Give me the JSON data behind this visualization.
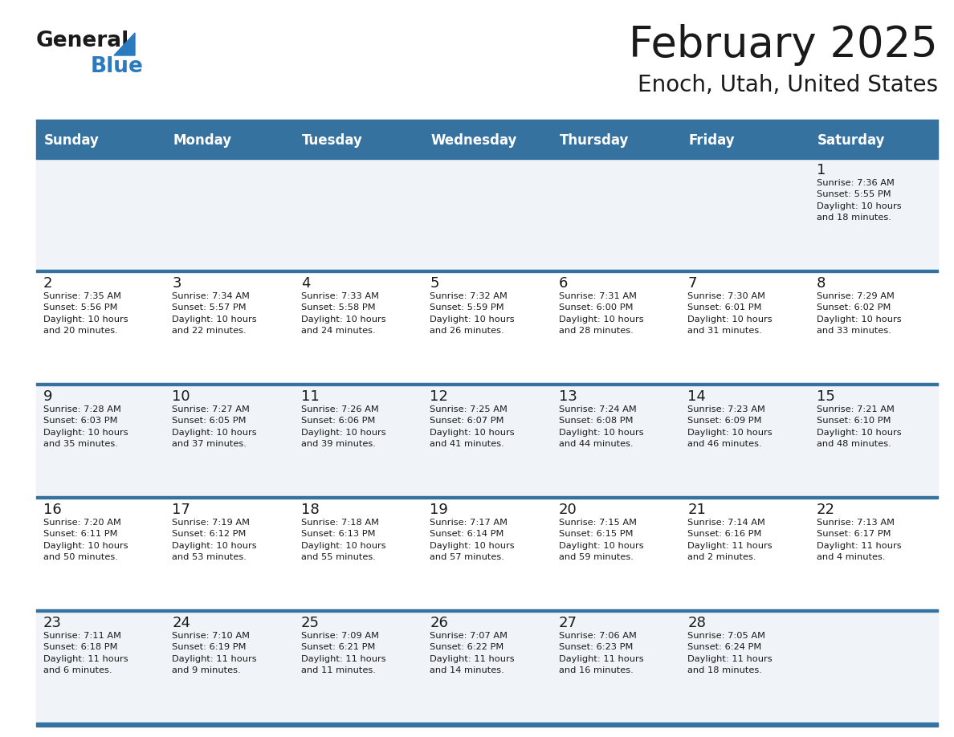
{
  "title": "February 2025",
  "subtitle": "Enoch, Utah, United States",
  "header_color": "#3572a0",
  "header_text_color": "#ffffff",
  "cell_bg_even": "#f0f4f8",
  "cell_bg_odd": "#ffffff",
  "border_color": "#3572a0",
  "separator_color": "#3572a0",
  "day_names": [
    "Sunday",
    "Monday",
    "Tuesday",
    "Wednesday",
    "Thursday",
    "Friday",
    "Saturday"
  ],
  "title_color": "#1a1a1a",
  "subtitle_color": "#1a1a1a",
  "day_number_color": "#1a1a1a",
  "info_color": "#1a1a1a",
  "logo_general_color": "#1a1a1a",
  "logo_blue_color": "#2a7abf",
  "figw": 11.88,
  "figh": 9.18,
  "weeks": [
    [
      {
        "day": null,
        "info": ""
      },
      {
        "day": null,
        "info": ""
      },
      {
        "day": null,
        "info": ""
      },
      {
        "day": null,
        "info": ""
      },
      {
        "day": null,
        "info": ""
      },
      {
        "day": null,
        "info": ""
      },
      {
        "day": 1,
        "info": "Sunrise: 7:36 AM\nSunset: 5:55 PM\nDaylight: 10 hours\nand 18 minutes."
      }
    ],
    [
      {
        "day": 2,
        "info": "Sunrise: 7:35 AM\nSunset: 5:56 PM\nDaylight: 10 hours\nand 20 minutes."
      },
      {
        "day": 3,
        "info": "Sunrise: 7:34 AM\nSunset: 5:57 PM\nDaylight: 10 hours\nand 22 minutes."
      },
      {
        "day": 4,
        "info": "Sunrise: 7:33 AM\nSunset: 5:58 PM\nDaylight: 10 hours\nand 24 minutes."
      },
      {
        "day": 5,
        "info": "Sunrise: 7:32 AM\nSunset: 5:59 PM\nDaylight: 10 hours\nand 26 minutes."
      },
      {
        "day": 6,
        "info": "Sunrise: 7:31 AM\nSunset: 6:00 PM\nDaylight: 10 hours\nand 28 minutes."
      },
      {
        "day": 7,
        "info": "Sunrise: 7:30 AM\nSunset: 6:01 PM\nDaylight: 10 hours\nand 31 minutes."
      },
      {
        "day": 8,
        "info": "Sunrise: 7:29 AM\nSunset: 6:02 PM\nDaylight: 10 hours\nand 33 minutes."
      }
    ],
    [
      {
        "day": 9,
        "info": "Sunrise: 7:28 AM\nSunset: 6:03 PM\nDaylight: 10 hours\nand 35 minutes."
      },
      {
        "day": 10,
        "info": "Sunrise: 7:27 AM\nSunset: 6:05 PM\nDaylight: 10 hours\nand 37 minutes."
      },
      {
        "day": 11,
        "info": "Sunrise: 7:26 AM\nSunset: 6:06 PM\nDaylight: 10 hours\nand 39 minutes."
      },
      {
        "day": 12,
        "info": "Sunrise: 7:25 AM\nSunset: 6:07 PM\nDaylight: 10 hours\nand 41 minutes."
      },
      {
        "day": 13,
        "info": "Sunrise: 7:24 AM\nSunset: 6:08 PM\nDaylight: 10 hours\nand 44 minutes."
      },
      {
        "day": 14,
        "info": "Sunrise: 7:23 AM\nSunset: 6:09 PM\nDaylight: 10 hours\nand 46 minutes."
      },
      {
        "day": 15,
        "info": "Sunrise: 7:21 AM\nSunset: 6:10 PM\nDaylight: 10 hours\nand 48 minutes."
      }
    ],
    [
      {
        "day": 16,
        "info": "Sunrise: 7:20 AM\nSunset: 6:11 PM\nDaylight: 10 hours\nand 50 minutes."
      },
      {
        "day": 17,
        "info": "Sunrise: 7:19 AM\nSunset: 6:12 PM\nDaylight: 10 hours\nand 53 minutes."
      },
      {
        "day": 18,
        "info": "Sunrise: 7:18 AM\nSunset: 6:13 PM\nDaylight: 10 hours\nand 55 minutes."
      },
      {
        "day": 19,
        "info": "Sunrise: 7:17 AM\nSunset: 6:14 PM\nDaylight: 10 hours\nand 57 minutes."
      },
      {
        "day": 20,
        "info": "Sunrise: 7:15 AM\nSunset: 6:15 PM\nDaylight: 10 hours\nand 59 minutes."
      },
      {
        "day": 21,
        "info": "Sunrise: 7:14 AM\nSunset: 6:16 PM\nDaylight: 11 hours\nand 2 minutes."
      },
      {
        "day": 22,
        "info": "Sunrise: 7:13 AM\nSunset: 6:17 PM\nDaylight: 11 hours\nand 4 minutes."
      }
    ],
    [
      {
        "day": 23,
        "info": "Sunrise: 7:11 AM\nSunset: 6:18 PM\nDaylight: 11 hours\nand 6 minutes."
      },
      {
        "day": 24,
        "info": "Sunrise: 7:10 AM\nSunset: 6:19 PM\nDaylight: 11 hours\nand 9 minutes."
      },
      {
        "day": 25,
        "info": "Sunrise: 7:09 AM\nSunset: 6:21 PM\nDaylight: 11 hours\nand 11 minutes."
      },
      {
        "day": 26,
        "info": "Sunrise: 7:07 AM\nSunset: 6:22 PM\nDaylight: 11 hours\nand 14 minutes."
      },
      {
        "day": 27,
        "info": "Sunrise: 7:06 AM\nSunset: 6:23 PM\nDaylight: 11 hours\nand 16 minutes."
      },
      {
        "day": 28,
        "info": "Sunrise: 7:05 AM\nSunset: 6:24 PM\nDaylight: 11 hours\nand 18 minutes."
      },
      {
        "day": null,
        "info": ""
      }
    ]
  ]
}
